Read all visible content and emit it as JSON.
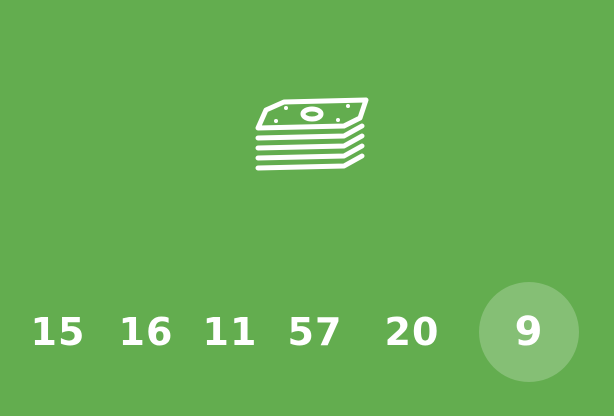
{
  "icon": {
    "name": "money-stack-icon",
    "color": "#ffffff"
  },
  "background_color": "#63ad4f",
  "numbers": {
    "items": [
      "15",
      "16",
      "11",
      "57",
      "20",
      "9"
    ],
    "selected": "9",
    "selected_bg": "rgba(255,255,255,0.22)"
  }
}
